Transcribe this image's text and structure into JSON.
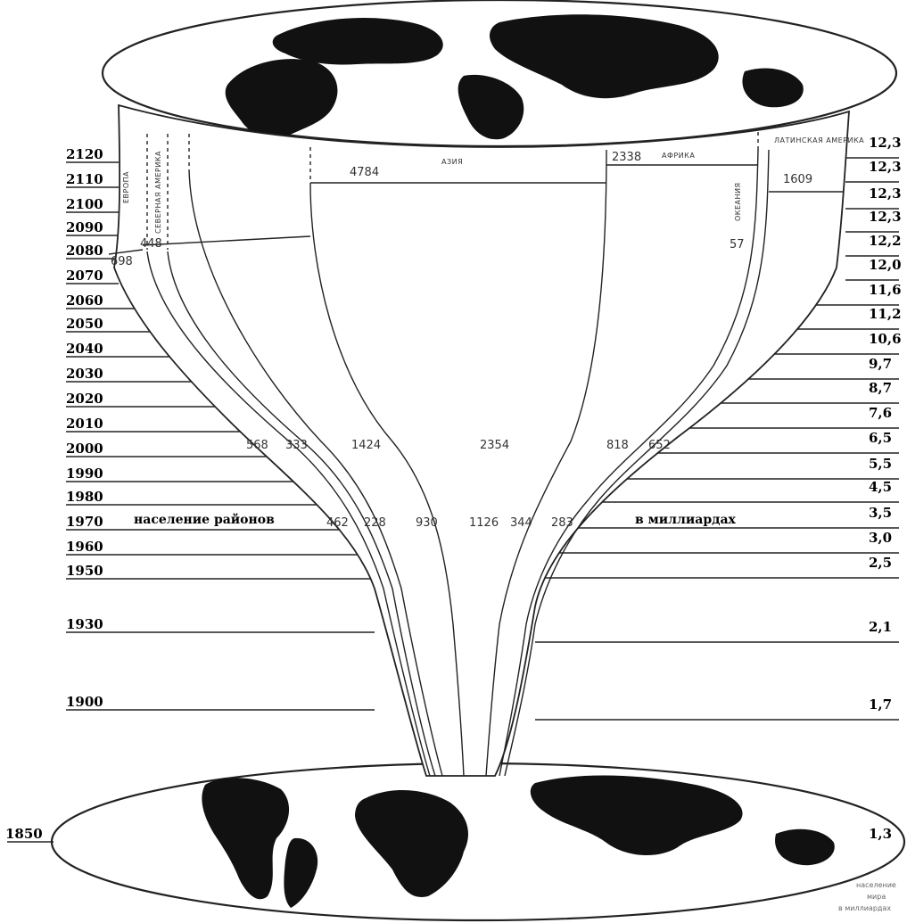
{
  "chart_data": {
    "type": "area",
    "title": "",
    "left_caption": "население районов",
    "right_caption": "в миллиардах",
    "legend_note": [
      "население",
      "мира",
      "в миллиардах"
    ],
    "years": [
      "1850",
      "1900",
      "1930",
      "1950",
      "1960",
      "1970",
      "1980",
      "1990",
      "2000",
      "2010",
      "2020",
      "2030",
      "2040",
      "2050",
      "2060",
      "2070",
      "2080",
      "2090",
      "2100",
      "2110",
      "2120"
    ],
    "world_population_billions": [
      "1,3",
      "1,7",
      "2,1",
      "2,5",
      "3,0",
      "3,5",
      "4,5",
      "5,5",
      "6,5",
      "7,6",
      "8,7",
      "9,7",
      "10,6",
      "11,2",
      "11,6",
      "12,0",
      "12,2",
      "12,3",
      "12,3",
      "12,3",
      "12,3"
    ],
    "regions": [
      {
        "name": "ЕВРОПА",
        "v1970": "462",
        "v2000": "568",
        "v2120": "698"
      },
      {
        "name": "СЕВЕРНАЯ АМЕРИКА",
        "v1970": "228",
        "v2000": "333",
        "v2120": "448"
      },
      {
        "name": "",
        "v1970": "930",
        "v2000": "1424"
      },
      {
        "name": "АЗИЯ",
        "v1970": "1126",
        "v2000": "2354",
        "v2120": "4784"
      },
      {
        "name": "",
        "v1970": "344",
        "v2000": "818"
      },
      {
        "name": "АФРИКА",
        "v2120": "2338"
      },
      {
        "name": "ЛАТИНСКАЯ АМЕРИКА",
        "v1970": "283",
        "v2000": "652",
        "v2120": "1609"
      },
      {
        "name": "ОКЕАНИЯ",
        "v2120": "57"
      }
    ]
  }
}
